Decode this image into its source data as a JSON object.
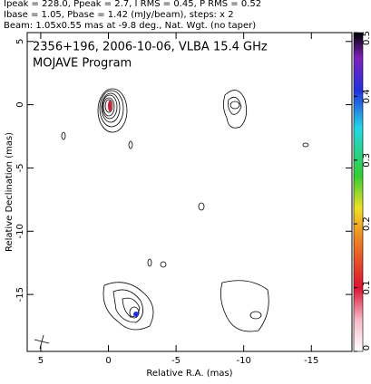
{
  "chart_data": {
    "type": "contour",
    "header": [
      "Ipeak = 228.0, Ppeak = 2.7, I RMS = 0.45, P RMS = 0.52",
      "Ibase = 1.05, Pbase = 1.42 (mJy/beam), steps: x 2",
      "Beam: 1.05x0.55 mas at -9.8 deg., Nat. Wgt. (no taper)"
    ],
    "title": "2356+196, 2006-10-06, VLBA 15.4 GHz",
    "subtitle": "MOJAVE Program",
    "x_label": "Relative R.A. (mas)",
    "y_label": "Relative Declination (mas)",
    "xlim": [
      6,
      -18
    ],
    "xticks": [
      5,
      0,
      -5,
      -10,
      -15
    ],
    "ylim": [
      -19.5,
      5.7
    ],
    "yticks": [
      5,
      0,
      -5,
      -10,
      -15
    ],
    "colorbar": {
      "lim": [
        0,
        0.5
      ],
      "ticks": [
        0,
        0.1,
        0.2,
        0.3,
        0.4,
        0.5
      ]
    }
  }
}
